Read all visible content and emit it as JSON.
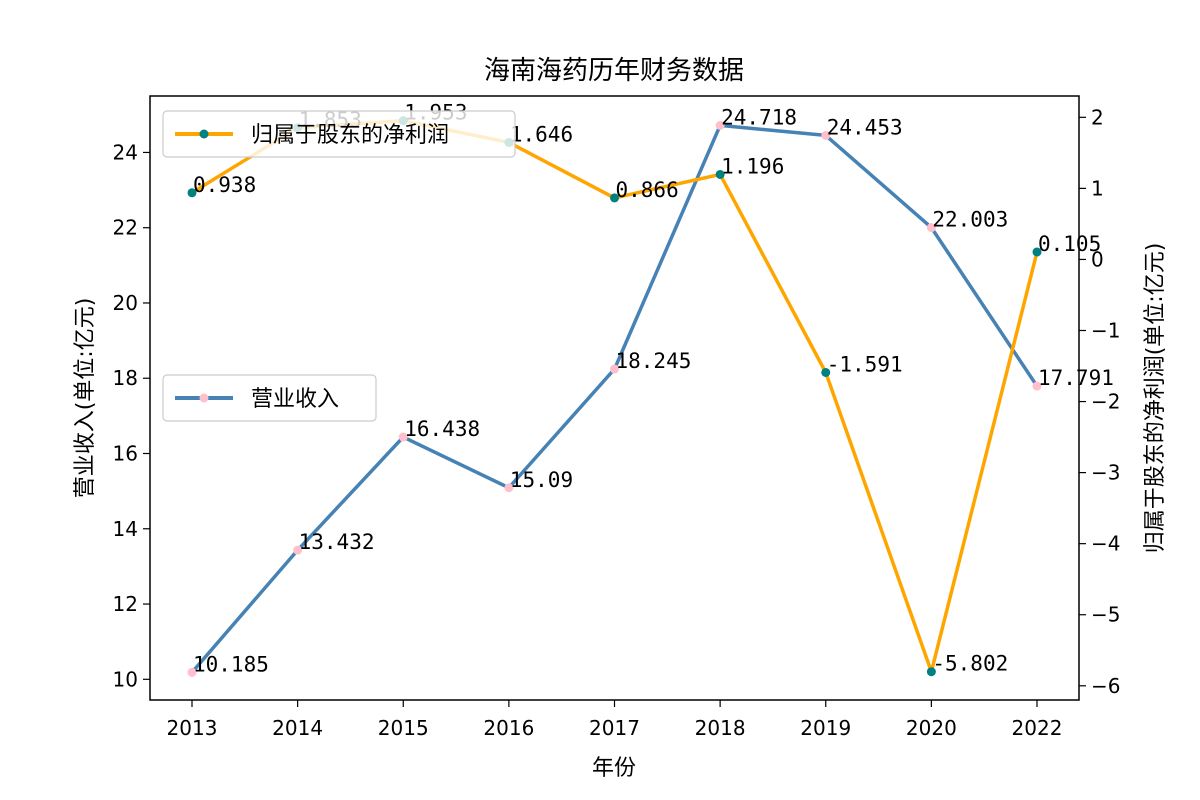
{
  "chart_data": {
    "type": "line",
    "title": "海南海药历年财务数据",
    "xlabel": "年份",
    "ylabel_left": "营业收入(单位:亿元)",
    "ylabel_right": "归属于股东的净利润(单位:亿元)",
    "categories": [
      "2013",
      "2014",
      "2015",
      "2016",
      "2017",
      "2018",
      "2019",
      "2020",
      "2022"
    ],
    "left_axis": {
      "ylim": [
        9.45,
        25.5
      ],
      "ticks": [
        10,
        12,
        14,
        16,
        18,
        20,
        22,
        24
      ]
    },
    "right_axis": {
      "ylim": [
        -6.2,
        2.3
      ],
      "ticks": [
        -6,
        -5,
        -4,
        -3,
        -2,
        -1,
        0,
        1,
        2
      ]
    },
    "series": [
      {
        "name": "营业收入",
        "axis": "left",
        "color": "#4682b4",
        "marker_color": "#ffc0cb",
        "values": [
          10.185,
          13.432,
          16.438,
          15.09,
          18.245,
          24.718,
          24.453,
          22.003,
          17.791
        ],
        "labels": [
          "10.185",
          "13.432",
          "16.438",
          "15.09",
          "18.245",
          "24.718",
          "24.453",
          "22.003",
          "17.791"
        ],
        "legend_position": "center-left"
      },
      {
        "name": "归属于股东的净利润",
        "axis": "right",
        "color": "#ffa500",
        "marker_color": "#008080",
        "values": [
          0.938,
          1.853,
          1.953,
          1.646,
          0.866,
          1.196,
          -1.591,
          -5.802,
          0.105
        ],
        "labels": [
          "0.938",
          "1.853",
          "1.953",
          "1.646",
          "0.866",
          "1.196",
          "-1.591",
          "-5.802",
          "0.105"
        ],
        "legend_position": "upper-left"
      }
    ]
  }
}
